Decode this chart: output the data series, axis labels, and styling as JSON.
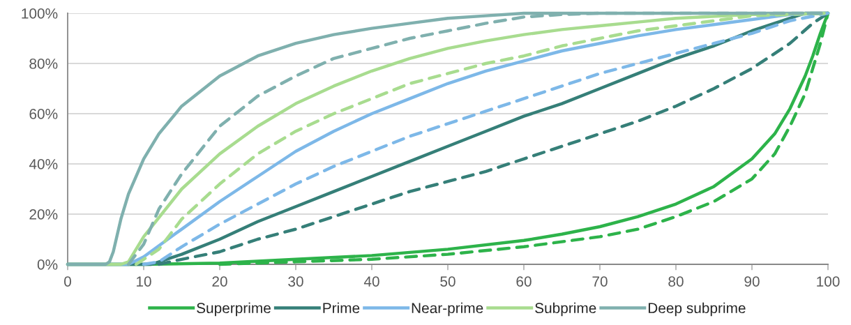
{
  "chart_data": {
    "type": "line",
    "series": [
      {
        "name": "Superprime",
        "color": "#2db34a",
        "line_style": "solid",
        "x": [
          0,
          10,
          20,
          30,
          40,
          50,
          60,
          65,
          70,
          75,
          80,
          85,
          90,
          93,
          95,
          97,
          98,
          99,
          100
        ],
        "values": [
          0,
          0,
          0.5,
          2,
          3.5,
          6,
          9.5,
          12,
          15,
          19,
          24,
          31,
          42,
          52,
          62,
          75,
          83,
          92,
          100
        ]
      },
      {
        "name": "Prime",
        "color": "#357f78",
        "line_style": "solid",
        "x": [
          0,
          11,
          15,
          20,
          25,
          30,
          35,
          40,
          45,
          50,
          55,
          60,
          65,
          70,
          75,
          80,
          85,
          90,
          95,
          97,
          100
        ],
        "values": [
          0,
          0,
          4,
          10,
          17,
          23,
          29,
          35,
          41,
          47,
          53,
          59,
          64,
          70,
          76,
          82,
          87,
          93,
          98,
          100,
          100
        ]
      },
      {
        "name": "Near-prime",
        "color": "#7db8e8",
        "line_style": "solid",
        "x": [
          0,
          8,
          10,
          15,
          20,
          25,
          30,
          35,
          40,
          45,
          50,
          55,
          60,
          65,
          70,
          75,
          80,
          85,
          90,
          95,
          100
        ],
        "values": [
          0,
          0,
          3,
          14,
          25,
          35,
          45,
          53,
          60,
          66,
          72,
          77,
          81,
          85,
          88,
          91,
          93.5,
          95.5,
          97.5,
          99.5,
          100
        ]
      },
      {
        "name": "Subprime",
        "color": "#a8dc8f",
        "line_style": "solid",
        "x": [
          0,
          7,
          8,
          10,
          15,
          20,
          25,
          30,
          35,
          40,
          45,
          50,
          55,
          60,
          65,
          70,
          75,
          80,
          90,
          100
        ],
        "values": [
          0,
          0,
          1,
          11,
          30,
          44,
          55,
          64,
          71,
          77,
          82,
          86,
          89,
          91.5,
          93.5,
          95,
          96.5,
          98,
          99.5,
          100
        ]
      },
      {
        "name": "Deep subprime",
        "color": "#7fb0ae",
        "line_style": "solid",
        "x": [
          0,
          5,
          5.5,
          6,
          7,
          8,
          10,
          12,
          15,
          20,
          25,
          30,
          35,
          40,
          45,
          50,
          55,
          60,
          100
        ],
        "values": [
          0,
          0,
          1,
          5,
          18,
          28,
          42,
          52,
          63,
          75,
          83,
          88,
          91.5,
          94,
          96,
          98,
          99,
          100,
          100
        ]
      },
      {
        "color": "#2db34a",
        "line_style": "dashed",
        "x": [
          20,
          30,
          40,
          50,
          60,
          70,
          75,
          80,
          85,
          90,
          93,
          95,
          97,
          98,
          99,
          100
        ],
        "values": [
          0,
          1,
          2,
          4,
          7,
          11,
          14,
          19,
          25,
          34,
          44,
          55,
          68,
          78,
          88,
          100
        ]
      },
      {
        "color": "#357f78",
        "line_style": "dashed",
        "x": [
          12,
          15,
          20,
          25,
          30,
          35,
          40,
          45,
          50,
          55,
          60,
          65,
          70,
          75,
          80,
          85,
          90,
          95,
          98,
          100
        ],
        "values": [
          0,
          2,
          5,
          10,
          14,
          19,
          24,
          29,
          33,
          37,
          42,
          47,
          52,
          57,
          63,
          70,
          78,
          88,
          96,
          100
        ]
      },
      {
        "color": "#7db8e8",
        "line_style": "dashed",
        "x": [
          10,
          12,
          15,
          20,
          25,
          30,
          35,
          40,
          45,
          50,
          55,
          60,
          65,
          70,
          75,
          80,
          85,
          90,
          95,
          100
        ],
        "values": [
          0,
          1,
          7,
          16,
          24,
          32,
          39,
          45,
          51,
          56,
          61,
          66,
          71,
          76,
          80,
          84,
          88,
          92,
          97,
          100
        ]
      },
      {
        "color": "#a8dc8f",
        "line_style": "dashed",
        "x": [
          9,
          10,
          12,
          15,
          20,
          25,
          30,
          35,
          40,
          45,
          50,
          55,
          60,
          65,
          70,
          75,
          80,
          85,
          90,
          100
        ],
        "values": [
          0,
          2,
          6,
          18,
          32,
          44,
          53,
          60,
          66,
          72,
          76,
          80,
          83,
          87,
          90,
          93,
          95,
          97,
          99,
          100
        ]
      },
      {
        "color": "#7fb0ae",
        "line_style": "dashed",
        "x": [
          8,
          10,
          12,
          15,
          20,
          25,
          30,
          35,
          40,
          45,
          50,
          55,
          60,
          65,
          70,
          100
        ],
        "values": [
          0,
          8,
          22,
          36,
          55,
          67,
          75,
          82,
          86,
          90,
          93,
          96,
          98.5,
          99.5,
          100,
          100
        ]
      }
    ],
    "xlim": [
      0,
      100
    ],
    "xticks": [
      0,
      10,
      20,
      30,
      40,
      50,
      60,
      70,
      80,
      90,
      100
    ],
    "ylim": [
      0,
      100
    ],
    "yticks": [
      {
        "value": 0,
        "label": "0%"
      },
      {
        "value": 20,
        "label": "20%"
      },
      {
        "value": 40,
        "label": "40%"
      },
      {
        "value": 60,
        "label": "60%"
      },
      {
        "value": 80,
        "label": "80%"
      },
      {
        "value": 100,
        "label": "100%"
      }
    ],
    "grid": "y",
    "legend": "bottom",
    "marker": "none"
  }
}
